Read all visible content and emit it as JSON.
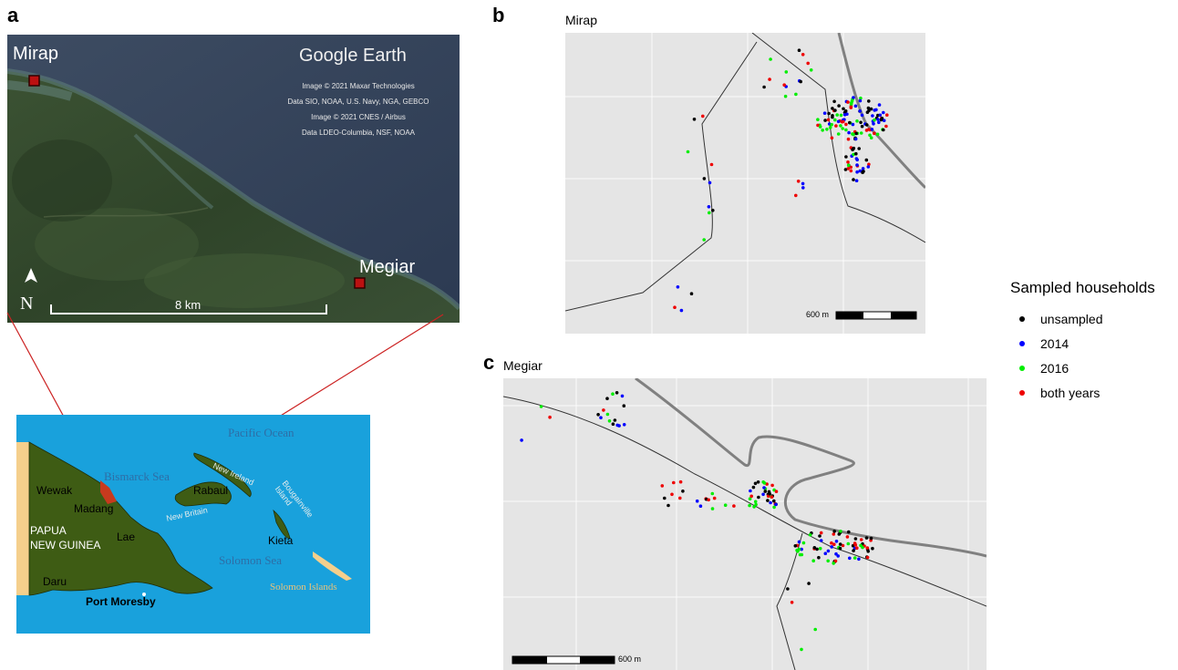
{
  "panel_a": {
    "letter": "a",
    "mirap_label": "Mirap",
    "megiar_label": "Megiar",
    "watermark": "Google Earth",
    "credits": [
      "Image © 2021 Maxar Technologies",
      "Data SIO, NOAA, U.S. Navy, NGA, GEBCO",
      "Image © 2021 CNES / Airbus",
      "Data LDEO-Columbia, NSF, NOAA"
    ],
    "north_label": "N",
    "scale_label": "8 km"
  },
  "png_map": {
    "labels": {
      "pacific_ocean": "Pacific Ocean",
      "bismarck_sea": "Bismarck Sea",
      "new_ireland": "New Ireland",
      "rabaul": "Rabaul",
      "new_britain": "New Britain",
      "bougainville": "Bougainville Island",
      "wewak": "Wewak",
      "madang": "Madang",
      "papua_line1": "PAPUA",
      "papua_line2": "NEW GUINEA",
      "lae": "Lae",
      "kieta": "Kieta",
      "solomon_sea": "Solomon Sea",
      "daru": "Daru",
      "solomon_islands": "Solomon Islands",
      "port_moresby": "Port Moresby"
    }
  },
  "panel_b": {
    "letter": "b",
    "title": "Mirap",
    "scale_label": "600 m"
  },
  "panel_c": {
    "letter": "c",
    "title": "Megiar",
    "scale_label": "600 m"
  },
  "legend": {
    "title": "Sampled households",
    "items": [
      {
        "label": "unsampled",
        "color": "#000000"
      },
      {
        "label": "2014",
        "color": "#0000ff"
      },
      {
        "label": "2016",
        "color": "#00ee00"
      },
      {
        "label": "both years",
        "color": "#ee0000"
      }
    ]
  },
  "colors": {
    "plot_bg": "#e5e5e5",
    "coast_gray": "#808080",
    "ocean_blue": "#19a1dc",
    "land_green": "#3e5c14",
    "indonesia_sand": "#f5cf8c",
    "connector_red": "#cc2222"
  }
}
